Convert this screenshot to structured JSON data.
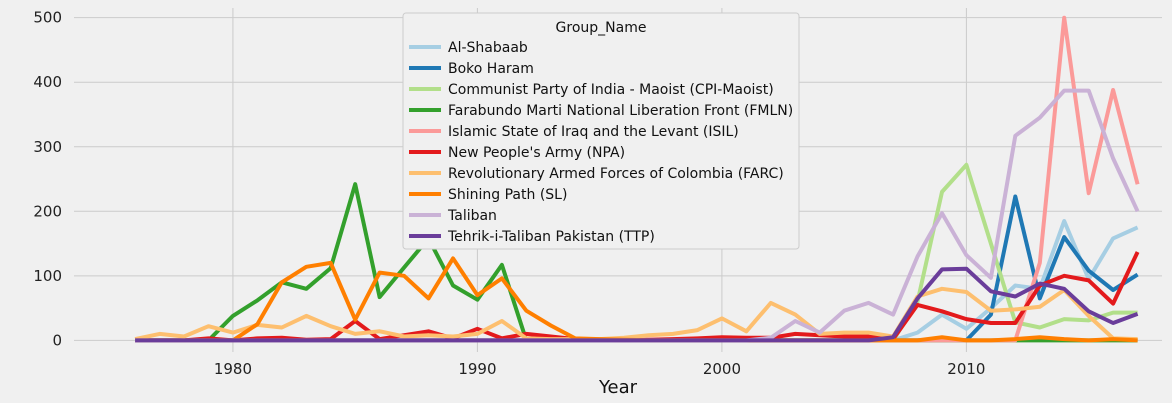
{
  "chart_data": {
    "type": "line",
    "xlabel": "Year",
    "ylabel": "",
    "xlim": [
      1973.5,
      2018.0
    ],
    "ylim": [
      -18,
      515
    ],
    "xticks": [
      1980,
      1990,
      2000,
      2010
    ],
    "yticks": [
      0,
      100,
      200,
      300,
      400,
      500
    ],
    "grid": true,
    "legend": {
      "title": "Group_Name",
      "placement": "top-center"
    },
    "x": [
      1976,
      1977,
      1978,
      1979,
      1980,
      1981,
      1982,
      1983,
      1984,
      1985,
      1986,
      1987,
      1988,
      1989,
      1990,
      1991,
      1992,
      1993,
      1994,
      1995,
      1996,
      1997,
      1998,
      1999,
      2000,
      2001,
      2002,
      2003,
      2004,
      2005,
      2006,
      2007,
      2008,
      2009,
      2010,
      2011,
      2012,
      2013,
      2014,
      2015,
      2016,
      2017
    ],
    "series": [
      {
        "name": "Al-Shabaab",
        "color": "#a6cee3",
        "values": [
          0,
          0,
          0,
          0,
          0,
          0,
          0,
          0,
          0,
          0,
          0,
          0,
          0,
          0,
          0,
          0,
          0,
          0,
          0,
          0,
          0,
          0,
          0,
          0,
          0,
          0,
          0,
          0,
          0,
          0,
          0,
          0,
          12,
          40,
          18,
          50,
          85,
          80,
          185,
          95,
          158,
          175
        ]
      },
      {
        "name": "Boko Haram",
        "color": "#1f78b4",
        "values": [
          0,
          0,
          0,
          0,
          0,
          0,
          0,
          0,
          0,
          0,
          0,
          0,
          0,
          0,
          0,
          0,
          0,
          0,
          0,
          0,
          0,
          0,
          0,
          0,
          0,
          0,
          0,
          0,
          0,
          0,
          0,
          0,
          0,
          0,
          0,
          40,
          223,
          65,
          160,
          108,
          78,
          102
        ]
      },
      {
        "name": "Communist Party of India - Maoist (CPI-Maoist)",
        "color": "#b2df8a",
        "values": [
          0,
          0,
          0,
          0,
          0,
          0,
          0,
          0,
          0,
          0,
          0,
          0,
          0,
          0,
          0,
          0,
          0,
          0,
          0,
          0,
          0,
          0,
          0,
          0,
          0,
          0,
          0,
          0,
          0,
          0,
          0,
          0,
          60,
          230,
          272,
          150,
          28,
          20,
          33,
          31,
          43,
          43
        ]
      },
      {
        "name": "Farabundo Marti National Liberation Front (FMLN)",
        "color": "#33a02c",
        "values": [
          0,
          0,
          0,
          0,
          38,
          62,
          90,
          80,
          112,
          242,
          67,
          113,
          158,
          85,
          63,
          117,
          0,
          0,
          0,
          0,
          0,
          0,
          0,
          0,
          0,
          0,
          0,
          0,
          0,
          0,
          0,
          0,
          0,
          0,
          0,
          0,
          0,
          0,
          0,
          0,
          0,
          0
        ]
      },
      {
        "name": "Islamic State of Iraq and the Levant (ISIL)",
        "color": "#fb9a99",
        "values": [
          0,
          0,
          0,
          0,
          0,
          0,
          0,
          0,
          0,
          0,
          0,
          0,
          0,
          0,
          0,
          0,
          0,
          0,
          0,
          0,
          0,
          0,
          0,
          0,
          0,
          0,
          0,
          0,
          0,
          0,
          0,
          0,
          0,
          0,
          0,
          0,
          0,
          120,
          500,
          228,
          388,
          242
        ]
      },
      {
        "name": "New People's Army (NPA)",
        "color": "#e31a1c",
        "values": [
          0,
          0,
          0,
          3,
          0,
          3,
          4,
          1,
          2,
          30,
          2,
          8,
          14,
          3,
          18,
          3,
          10,
          6,
          2,
          1,
          0,
          1,
          2,
          3,
          5,
          4,
          4,
          10,
          8,
          6,
          6,
          2,
          55,
          45,
          33,
          27,
          27,
          85,
          100,
          93,
          57,
          137
        ]
      },
      {
        "name": "Revolutionary Armed Forces of Colombia (FARC)",
        "color": "#fdbf6f",
        "values": [
          2,
          10,
          6,
          22,
          12,
          24,
          20,
          38,
          22,
          10,
          14,
          6,
          8,
          6,
          10,
          30,
          3,
          2,
          2,
          2,
          4,
          8,
          10,
          16,
          34,
          14,
          58,
          40,
          10,
          12,
          12,
          6,
          68,
          80,
          75,
          46,
          48,
          52,
          78,
          38,
          3,
          2
        ]
      },
      {
        "name": "Shining Path (SL)",
        "color": "#ff7f00",
        "values": [
          0,
          0,
          0,
          0,
          0,
          25,
          90,
          114,
          120,
          32,
          105,
          100,
          65,
          127,
          70,
          96,
          46,
          23,
          3,
          2,
          1,
          0,
          0,
          0,
          0,
          0,
          0,
          0,
          0,
          0,
          0,
          0,
          0,
          5,
          0,
          0,
          2,
          5,
          2,
          0,
          2,
          0
        ]
      },
      {
        "name": "Taliban",
        "color": "#cab2d6",
        "values": [
          0,
          0,
          0,
          0,
          0,
          0,
          0,
          0,
          0,
          0,
          0,
          0,
          0,
          0,
          0,
          0,
          0,
          0,
          0,
          0,
          0,
          0,
          0,
          0,
          0,
          0,
          4,
          30,
          12,
          46,
          58,
          40,
          130,
          197,
          132,
          97,
          317,
          345,
          387,
          387,
          282,
          200
        ]
      },
      {
        "name": "Tehrik-i-Taliban Pakistan (TTP)",
        "color": "#6a3d9a",
        "values": [
          0,
          0,
          0,
          0,
          0,
          0,
          0,
          0,
          0,
          0,
          0,
          0,
          0,
          0,
          0,
          0,
          0,
          0,
          0,
          0,
          0,
          0,
          0,
          0,
          0,
          0,
          0,
          0,
          0,
          0,
          0,
          5,
          65,
          110,
          111,
          76,
          68,
          88,
          80,
          45,
          27,
          41
        ]
      }
    ]
  }
}
